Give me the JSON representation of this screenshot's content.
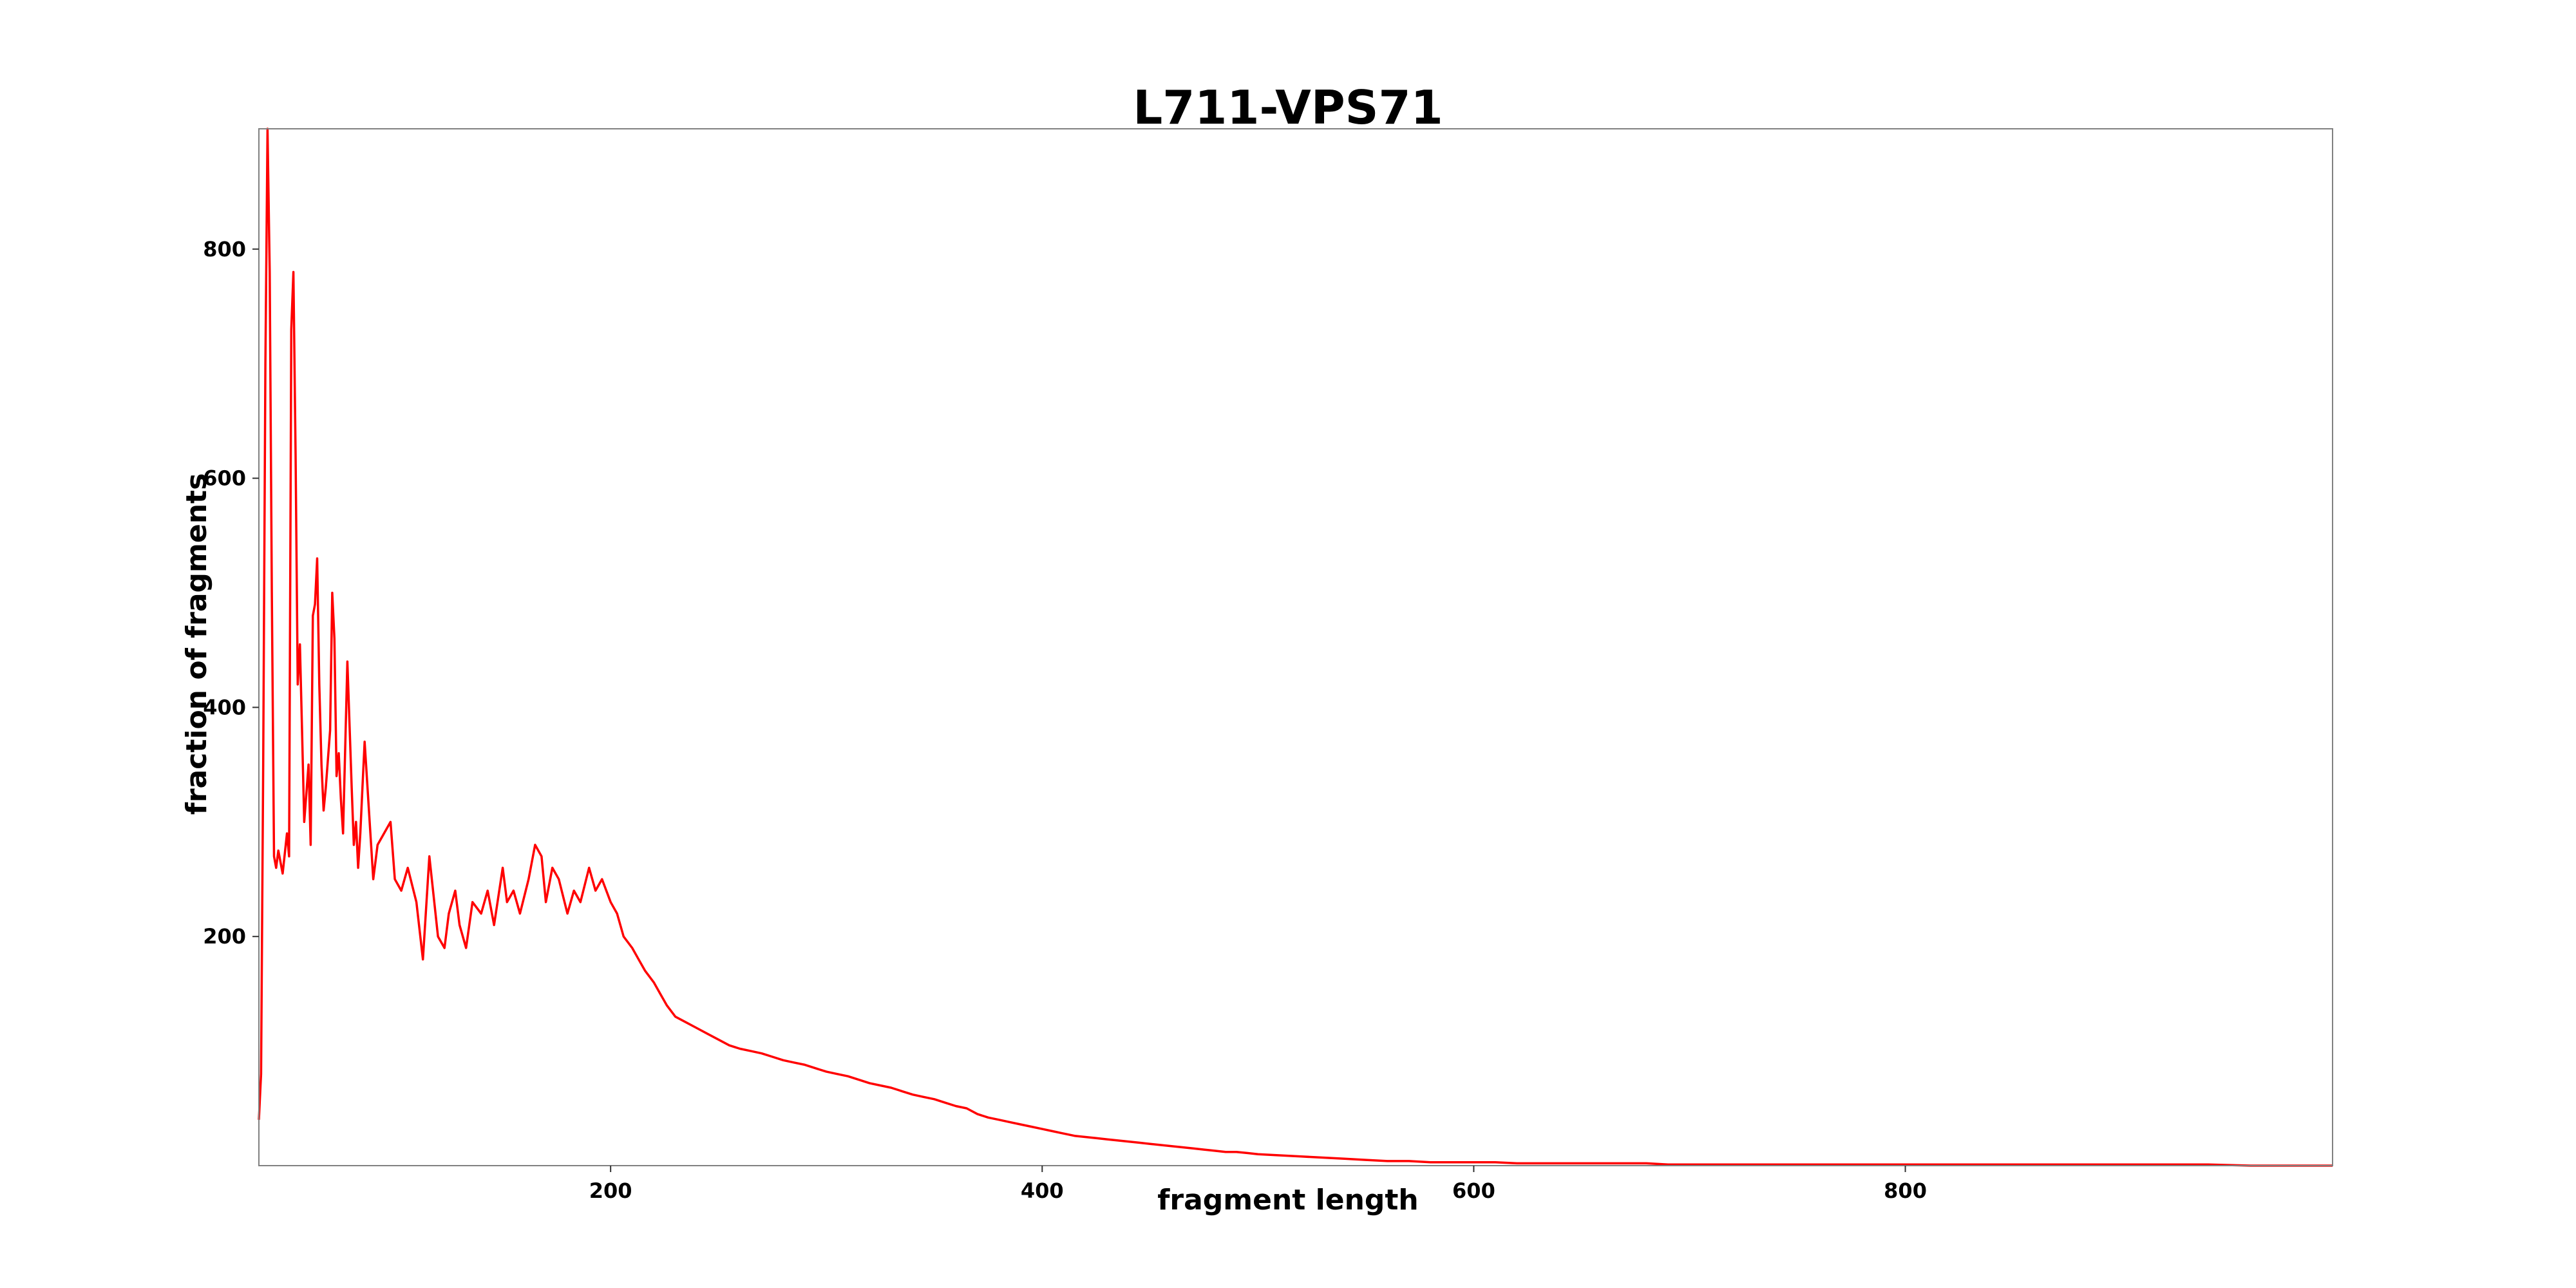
{
  "chart_data": {
    "type": "line",
    "title": "L711-VPS71",
    "xlabel": "fragment length",
    "ylabel": "fraction of fragments",
    "xlim": [
      37,
      998
    ],
    "ylim": [
      0,
      905
    ],
    "xticks": [
      200,
      400,
      600,
      800
    ],
    "yticks": [
      200,
      400,
      600,
      800
    ],
    "grid": false,
    "line_color": "#ff0000",
    "series": [
      {
        "x": [
          37,
          38,
          39,
          40,
          41,
          42,
          43,
          44,
          45,
          46,
          48,
          50,
          51,
          52,
          53,
          54,
          55,
          56,
          57,
          58,
          60,
          61,
          62,
          63,
          64,
          65,
          66,
          67,
          68,
          70,
          71,
          72,
          73,
          74,
          75,
          76,
          78,
          80,
          81,
          82,
          83,
          84,
          85,
          86,
          88,
          90,
          92,
          95,
          98,
          100,
          103,
          106,
          110,
          113,
          116,
          120,
          123,
          125,
          128,
          130,
          133,
          136,
          140,
          143,
          146,
          150,
          152,
          155,
          158,
          162,
          165,
          168,
          170,
          173,
          176,
          180,
          183,
          186,
          190,
          193,
          196,
          200,
          203,
          206,
          210,
          213,
          216,
          220,
          223,
          226,
          230,
          235,
          240,
          245,
          250,
          255,
          260,
          265,
          270,
          275,
          280,
          285,
          290,
          295,
          300,
          305,
          310,
          315,
          320,
          325,
          330,
          335,
          340,
          345,
          350,
          355,
          360,
          365,
          370,
          375,
          380,
          385,
          390,
          395,
          400,
          405,
          410,
          415,
          420,
          425,
          430,
          435,
          440,
          445,
          450,
          455,
          460,
          465,
          470,
          475,
          480,
          485,
          490,
          495,
          500,
          510,
          520,
          530,
          540,
          550,
          560,
          570,
          580,
          590,
          600,
          610,
          620,
          630,
          640,
          650,
          660,
          670,
          680,
          690,
          700,
          720,
          740,
          760,
          780,
          800,
          820,
          840,
          860,
          880,
          900,
          920,
          940,
          960,
          980,
          998
        ],
        "y": [
          40,
          80,
          350,
          700,
          905,
          780,
          500,
          270,
          260,
          275,
          255,
          290,
          270,
          730,
          780,
          620,
          420,
          455,
          380,
          300,
          350,
          280,
          480,
          490,
          530,
          420,
          350,
          310,
          330,
          380,
          500,
          460,
          340,
          360,
          320,
          290,
          440,
          330,
          280,
          300,
          260,
          290,
          330,
          370,
          310,
          250,
          280,
          290,
          300,
          250,
          240,
          260,
          230,
          180,
          270,
          200,
          190,
          220,
          240,
          210,
          190,
          230,
          220,
          240,
          210,
          260,
          230,
          240,
          220,
          250,
          280,
          270,
          230,
          260,
          250,
          220,
          240,
          230,
          260,
          240,
          250,
          230,
          220,
          200,
          190,
          180,
          170,
          160,
          150,
          140,
          130,
          125,
          120,
          115,
          110,
          105,
          102,
          100,
          98,
          95,
          92,
          90,
          88,
          85,
          82,
          80,
          78,
          75,
          72,
          70,
          68,
          65,
          62,
          60,
          58,
          55,
          52,
          50,
          45,
          42,
          40,
          38,
          36,
          34,
          32,
          30,
          28,
          26,
          25,
          24,
          23,
          22,
          21,
          20,
          19,
          18,
          17,
          16,
          15,
          14,
          13,
          12,
          12,
          11,
          10,
          9,
          8,
          7,
          6,
          5,
          4,
          4,
          3,
          3,
          3,
          3,
          2,
          2,
          2,
          2,
          2,
          2,
          2,
          1,
          1,
          1,
          1,
          1,
          1,
          1,
          1,
          1,
          1,
          1,
          1,
          1,
          1,
          0,
          0,
          0
        ]
      }
    ]
  }
}
